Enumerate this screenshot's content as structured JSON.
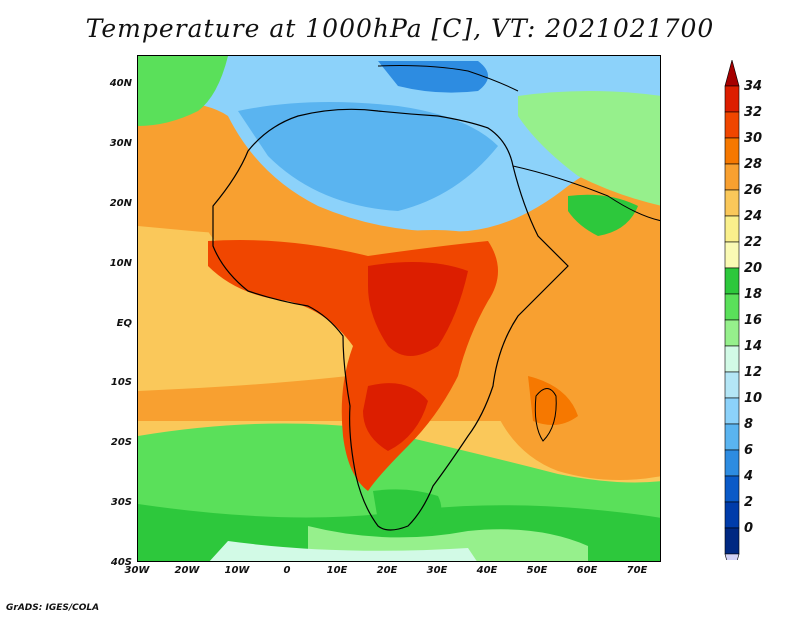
{
  "title": "Temperature at 1000hPa [C], VT: 2021021700",
  "credit": "GrADS: IGES/COLA",
  "lat_axis": [
    "40N",
    "30N",
    "20N",
    "10N",
    "EQ",
    "10S",
    "20S",
    "30S",
    "40S"
  ],
  "lon_axis": [
    "30W",
    "20W",
    "10W",
    "0",
    "10E",
    "20E",
    "30E",
    "40E",
    "50E",
    "60E",
    "70E"
  ],
  "colorbar": {
    "labels": [
      "34",
      "32",
      "30",
      "28",
      "26",
      "24",
      "22",
      "20",
      "18",
      "16",
      "14",
      "12",
      "10",
      "8",
      "6",
      "4",
      "2",
      "0"
    ],
    "colors": [
      "#a50000",
      "#dc1e00",
      "#f04600",
      "#f67800",
      "#f8a030",
      "#fac85a",
      "#faf08c",
      "#fafab4",
      "#2dc83c",
      "#5ae05a",
      "#96f08c",
      "#d2fae6",
      "#b4e6f6",
      "#8cd2fa",
      "#5ab4f0",
      "#2d8ce1",
      "#0a5ac8",
      "#003caa",
      "#002882",
      "#d2d2f6"
    ]
  },
  "chart_data": {
    "type": "heatmap",
    "title": "Temperature at 1000hPa [C], VT: 2021021700",
    "variable": "Temperature at 1000hPa",
    "units": "C",
    "valid_time": "2021021700",
    "xlabel": "",
    "ylabel": "",
    "x_ticks": [
      "30W",
      "20W",
      "10W",
      "0",
      "10E",
      "20E",
      "30E",
      "40E",
      "50E",
      "60E",
      "70E"
    ],
    "y_ticks": [
      "40N",
      "30N",
      "20N",
      "10N",
      "EQ",
      "10S",
      "20S",
      "30S",
      "40S"
    ],
    "xlim": [
      -30,
      75
    ],
    "ylim": [
      -40,
      45
    ],
    "colorbar_range": [
      0,
      34
    ],
    "colorbar_interval": 2
  }
}
